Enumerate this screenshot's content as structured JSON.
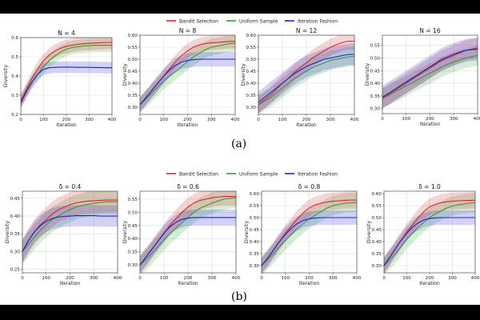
{
  "legend": {
    "entries": [
      {
        "label": "Bandit Selection",
        "color": "#d62728"
      },
      {
        "label": "Uniform Sample",
        "color": "#2ca02c"
      },
      {
        "label": "Iteration Fashion",
        "color": "#1f1fd6"
      }
    ]
  },
  "captions": {
    "a": "(a)",
    "b": "(b)"
  },
  "chart_data": [
    {
      "type": "line",
      "title": "N = 4",
      "xlabel": "Iteration",
      "ylabel": "Diversity",
      "xlim": [
        0,
        400
      ],
      "ylim": [
        0.2,
        0.6
      ],
      "xticks": [
        0,
        100,
        200,
        300,
        400
      ],
      "yticks": [
        0.2,
        0.3,
        0.4,
        0.5,
        0.6
      ],
      "ytick_labels": [
        "0.2",
        "0.3",
        "0.4",
        "0.5",
        "0.6"
      ],
      "grid": true,
      "x": [
        0,
        25,
        50,
        75,
        100,
        125,
        150,
        175,
        200,
        225,
        250,
        275,
        300,
        325,
        350,
        375,
        400
      ],
      "series": [
        {
          "name": "Bandit Selection",
          "values": [
            0.27,
            0.33,
            0.39,
            0.44,
            0.48,
            0.51,
            0.53,
            0.545,
            0.555,
            0.56,
            0.565,
            0.568,
            0.57,
            0.572,
            0.573,
            0.575,
            0.575
          ],
          "band": 0.035
        },
        {
          "name": "Uniform Sample",
          "values": [
            0.27,
            0.32,
            0.37,
            0.41,
            0.45,
            0.48,
            0.505,
            0.525,
            0.54,
            0.548,
            0.553,
            0.556,
            0.558,
            0.56,
            0.56,
            0.56,
            0.56
          ],
          "band": 0.035
        },
        {
          "name": "Iteration Fashion",
          "values": [
            0.26,
            0.32,
            0.37,
            0.41,
            0.435,
            0.443,
            0.445,
            0.446,
            0.446,
            0.446,
            0.445,
            0.445,
            0.445,
            0.444,
            0.444,
            0.443,
            0.443
          ],
          "band": 0.03
        }
      ]
    },
    {
      "type": "line",
      "title": "N = 8",
      "xlabel": "Iteration",
      "ylabel": "Diversity",
      "xlim": [
        0,
        400
      ],
      "ylim": [
        0.27,
        0.6
      ],
      "xticks": [
        0,
        100,
        200,
        300,
        400
      ],
      "yticks": [
        0.3,
        0.35,
        0.4,
        0.45,
        0.5,
        0.55,
        0.6
      ],
      "ytick_labels": [
        "0.30",
        "0.35",
        "0.40",
        "0.45",
        "0.50",
        "0.55",
        "0.60"
      ],
      "grid": true,
      "x": [
        0,
        25,
        50,
        75,
        100,
        125,
        150,
        175,
        200,
        225,
        250,
        275,
        300,
        325,
        350,
        375,
        400
      ],
      "series": [
        {
          "name": "Bandit Selection",
          "values": [
            0.31,
            0.34,
            0.37,
            0.4,
            0.43,
            0.46,
            0.49,
            0.515,
            0.535,
            0.55,
            0.56,
            0.565,
            0.568,
            0.57,
            0.572,
            0.574,
            0.575
          ],
          "band": 0.03
        },
        {
          "name": "Uniform Sample",
          "values": [
            0.31,
            0.335,
            0.36,
            0.385,
            0.41,
            0.43,
            0.45,
            0.47,
            0.49,
            0.51,
            0.525,
            0.54,
            0.55,
            0.555,
            0.56,
            0.565,
            0.567
          ],
          "band": 0.035
        },
        {
          "name": "Iteration Fashion",
          "values": [
            0.31,
            0.34,
            0.37,
            0.4,
            0.43,
            0.455,
            0.475,
            0.488,
            0.495,
            0.498,
            0.5,
            0.5,
            0.5,
            0.5,
            0.5,
            0.5,
            0.5
          ],
          "band": 0.03
        }
      ]
    },
    {
      "type": "line",
      "title": "N = 12",
      "xlabel": "Iteration",
      "ylabel": "Diversity",
      "xlim": [
        0,
        400
      ],
      "ylim": [
        0.27,
        0.6
      ],
      "xticks": [
        0,
        100,
        200,
        300,
        400
      ],
      "yticks": [
        0.3,
        0.35,
        0.4,
        0.45,
        0.5,
        0.55,
        0.6
      ],
      "ytick_labels": [
        "0.30",
        "0.35",
        "0.40",
        "0.45",
        "0.50",
        "0.55",
        "0.60"
      ],
      "grid": true,
      "x": [
        0,
        25,
        50,
        75,
        100,
        125,
        150,
        175,
        200,
        225,
        250,
        275,
        300,
        325,
        350,
        375,
        400
      ],
      "series": [
        {
          "name": "Bandit Selection",
          "values": [
            0.31,
            0.33,
            0.35,
            0.375,
            0.4,
            0.42,
            0.445,
            0.465,
            0.485,
            0.505,
            0.52,
            0.535,
            0.55,
            0.56,
            0.57,
            0.575,
            0.575
          ],
          "band": 0.035
        },
        {
          "name": "Uniform Sample",
          "values": [
            0.31,
            0.325,
            0.34,
            0.36,
            0.38,
            0.4,
            0.42,
            0.435,
            0.45,
            0.465,
            0.475,
            0.485,
            0.495,
            0.5,
            0.505,
            0.51,
            0.512
          ],
          "band": 0.04
        },
        {
          "name": "Iteration Fashion",
          "values": [
            0.32,
            0.34,
            0.36,
            0.38,
            0.4,
            0.42,
            0.44,
            0.455,
            0.47,
            0.48,
            0.49,
            0.5,
            0.505,
            0.51,
            0.515,
            0.52,
            0.52
          ],
          "band": 0.045
        }
      ]
    },
    {
      "type": "line",
      "title": "N = 16",
      "xlabel": "Iteration",
      "ylabel": "Diversity",
      "xlim": [
        0,
        400
      ],
      "ylim": [
        0.28,
        0.59
      ],
      "xticks": [
        0,
        100,
        200,
        300,
        400
      ],
      "yticks": [
        0.3,
        0.35,
        0.4,
        0.45,
        0.5,
        0.55
      ],
      "ytick_labels": [
        "0.30",
        "0.35",
        "0.40",
        "0.45",
        "0.50",
        "0.55"
      ],
      "grid": true,
      "x": [
        0,
        25,
        50,
        75,
        100,
        125,
        150,
        175,
        200,
        225,
        250,
        275,
        300,
        325,
        350,
        375,
        400
      ],
      "series": [
        {
          "name": "Bandit Selection",
          "values": [
            0.34,
            0.355,
            0.37,
            0.385,
            0.4,
            0.415,
            0.43,
            0.445,
            0.46,
            0.475,
            0.49,
            0.5,
            0.51,
            0.52,
            0.53,
            0.535,
            0.54
          ],
          "band": 0.04
        },
        {
          "name": "Uniform Sample",
          "values": [
            0.34,
            0.352,
            0.365,
            0.377,
            0.39,
            0.402,
            0.415,
            0.427,
            0.44,
            0.452,
            0.465,
            0.475,
            0.485,
            0.492,
            0.5,
            0.505,
            0.51
          ],
          "band": 0.04
        },
        {
          "name": "Iteration Fashion",
          "values": [
            0.345,
            0.36,
            0.375,
            0.39,
            0.405,
            0.42,
            0.435,
            0.45,
            0.465,
            0.48,
            0.495,
            0.505,
            0.515,
            0.523,
            0.53,
            0.533,
            0.535
          ],
          "band": 0.045
        }
      ]
    },
    {
      "type": "line",
      "title": "δ = 0.4",
      "xlabel": "Iteration",
      "ylabel": "Diversity",
      "xlim": [
        0,
        400
      ],
      "ylim": [
        0.24,
        0.47
      ],
      "xticks": [
        0,
        100,
        200,
        300,
        400
      ],
      "yticks": [
        0.25,
        0.3,
        0.35,
        0.4,
        0.45
      ],
      "ytick_labels": [
        "0.25",
        "0.30",
        "0.35",
        "0.40",
        "0.45"
      ],
      "grid": true,
      "x": [
        0,
        25,
        50,
        75,
        100,
        125,
        150,
        175,
        200,
        225,
        250,
        275,
        300,
        325,
        350,
        375,
        400
      ],
      "series": [
        {
          "name": "Bandit Selection",
          "values": [
            0.3,
            0.33,
            0.355,
            0.375,
            0.39,
            0.405,
            0.417,
            0.425,
            0.432,
            0.437,
            0.44,
            0.442,
            0.443,
            0.444,
            0.445,
            0.445,
            0.445
          ],
          "band": 0.035
        },
        {
          "name": "Uniform Sample",
          "values": [
            0.3,
            0.32,
            0.34,
            0.36,
            0.375,
            0.39,
            0.4,
            0.41,
            0.418,
            0.425,
            0.43,
            0.433,
            0.436,
            0.438,
            0.44,
            0.44,
            0.44
          ],
          "band": 0.035
        },
        {
          "name": "Iteration Fashion",
          "values": [
            0.3,
            0.33,
            0.355,
            0.372,
            0.385,
            0.393,
            0.397,
            0.399,
            0.4,
            0.401,
            0.401,
            0.401,
            0.401,
            0.4,
            0.4,
            0.4,
            0.4
          ],
          "band": 0.03
        }
      ]
    },
    {
      "type": "line",
      "title": "δ = 0.6",
      "xlabel": "Iteration",
      "ylabel": "Diversity",
      "xlim": [
        0,
        400
      ],
      "ylim": [
        0.27,
        0.58
      ],
      "xticks": [
        0,
        100,
        200,
        300,
        400
      ],
      "yticks": [
        0.3,
        0.35,
        0.4,
        0.45,
        0.5,
        0.55
      ],
      "ytick_labels": [
        "0.30",
        "0.35",
        "0.40",
        "0.45",
        "0.50",
        "0.55"
      ],
      "grid": true,
      "x": [
        0,
        25,
        50,
        75,
        100,
        125,
        150,
        175,
        200,
        225,
        250,
        275,
        300,
        325,
        350,
        375,
        400
      ],
      "series": [
        {
          "name": "Bandit Selection",
          "values": [
            0.3,
            0.33,
            0.36,
            0.39,
            0.42,
            0.45,
            0.475,
            0.5,
            0.52,
            0.535,
            0.545,
            0.55,
            0.555,
            0.558,
            0.56,
            0.56,
            0.56
          ],
          "band": 0.035
        },
        {
          "name": "Uniform Sample",
          "values": [
            0.3,
            0.32,
            0.345,
            0.37,
            0.395,
            0.42,
            0.44,
            0.46,
            0.48,
            0.5,
            0.515,
            0.525,
            0.535,
            0.543,
            0.55,
            0.553,
            0.555
          ],
          "band": 0.04
        },
        {
          "name": "Iteration Fashion",
          "values": [
            0.3,
            0.33,
            0.36,
            0.39,
            0.42,
            0.445,
            0.462,
            0.473,
            0.478,
            0.48,
            0.48,
            0.48,
            0.48,
            0.48,
            0.48,
            0.48,
            0.48
          ],
          "band": 0.03
        }
      ]
    },
    {
      "type": "line",
      "title": "δ = 0.8",
      "xlabel": "Iteration",
      "ylabel": "Diversity",
      "xlim": [
        0,
        400
      ],
      "ylim": [
        0.27,
        0.61
      ],
      "xticks": [
        0,
        100,
        200,
        300,
        400
      ],
      "yticks": [
        0.3,
        0.35,
        0.4,
        0.45,
        0.5,
        0.55,
        0.6
      ],
      "ytick_labels": [
        "0.30",
        "0.35",
        "0.40",
        "0.45",
        "0.50",
        "0.55",
        "0.60"
      ],
      "grid": true,
      "x": [
        0,
        25,
        50,
        75,
        100,
        125,
        150,
        175,
        200,
        225,
        250,
        275,
        300,
        325,
        350,
        375,
        400
      ],
      "series": [
        {
          "name": "Bandit Selection",
          "values": [
            0.3,
            0.33,
            0.365,
            0.4,
            0.435,
            0.465,
            0.495,
            0.52,
            0.54,
            0.553,
            0.56,
            0.565,
            0.568,
            0.57,
            0.572,
            0.573,
            0.573
          ],
          "band": 0.035
        },
        {
          "name": "Uniform Sample",
          "values": [
            0.3,
            0.325,
            0.35,
            0.38,
            0.405,
            0.43,
            0.455,
            0.475,
            0.495,
            0.51,
            0.525,
            0.54,
            0.55,
            0.555,
            0.56,
            0.562,
            0.563
          ],
          "band": 0.04
        },
        {
          "name": "Iteration Fashion",
          "values": [
            0.3,
            0.33,
            0.365,
            0.4,
            0.43,
            0.455,
            0.475,
            0.488,
            0.495,
            0.498,
            0.5,
            0.5,
            0.5,
            0.5,
            0.5,
            0.5,
            0.5
          ],
          "band": 0.03
        }
      ]
    },
    {
      "type": "line",
      "title": "δ = 1.0",
      "xlabel": "Iteration",
      "ylabel": "Diversity",
      "xlim": [
        0,
        400
      ],
      "ylim": [
        0.27,
        0.61
      ],
      "xticks": [
        0,
        100,
        200,
        300,
        400
      ],
      "yticks": [
        0.3,
        0.35,
        0.4,
        0.45,
        0.5,
        0.55,
        0.6
      ],
      "ytick_labels": [
        "0.30",
        "0.35",
        "0.40",
        "0.45",
        "0.50",
        "0.55",
        "0.60"
      ],
      "grid": true,
      "x": [
        0,
        25,
        50,
        75,
        100,
        125,
        150,
        175,
        200,
        225,
        250,
        275,
        300,
        325,
        350,
        375,
        400
      ],
      "series": [
        {
          "name": "Bandit Selection",
          "values": [
            0.3,
            0.335,
            0.37,
            0.405,
            0.44,
            0.47,
            0.5,
            0.525,
            0.545,
            0.555,
            0.562,
            0.566,
            0.568,
            0.57,
            0.571,
            0.572,
            0.572
          ],
          "band": 0.035
        },
        {
          "name": "Uniform Sample",
          "values": [
            0.3,
            0.325,
            0.35,
            0.38,
            0.41,
            0.435,
            0.46,
            0.48,
            0.5,
            0.515,
            0.528,
            0.54,
            0.548,
            0.553,
            0.557,
            0.56,
            0.562
          ],
          "band": 0.04
        },
        {
          "name": "Iteration Fashion",
          "values": [
            0.3,
            0.335,
            0.37,
            0.405,
            0.435,
            0.46,
            0.478,
            0.49,
            0.496,
            0.499,
            0.5,
            0.5,
            0.5,
            0.5,
            0.5,
            0.5,
            0.5
          ],
          "band": 0.03
        }
      ]
    }
  ]
}
